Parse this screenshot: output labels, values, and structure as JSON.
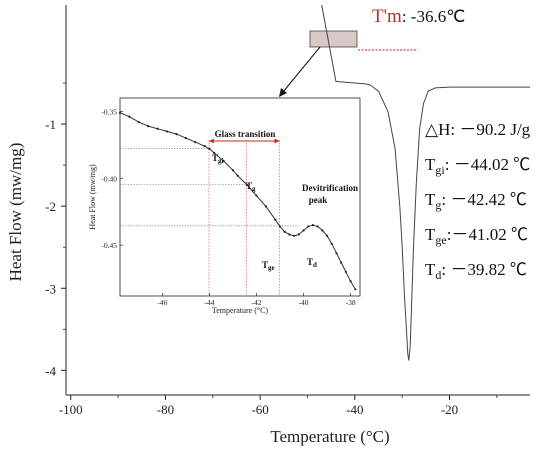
{
  "chart_data": [
    {
      "type": "line",
      "xlabel": "Temperature (°C)",
      "ylabel": "Heat Flow (mw/mg)",
      "xlim": [
        -101,
        -3
      ],
      "ylim": [
        -4.3,
        0.45
      ],
      "xticks": [
        -100,
        -80,
        -60,
        -40,
        -20
      ],
      "xtick_labels": [
        "-100",
        "-80",
        "-60",
        "-40",
        "-20"
      ],
      "yticks": [
        -1,
        -2,
        -3,
        -4
      ],
      "ytick_labels": [
        "-1",
        "-2",
        "-3",
        "-4"
      ],
      "grid": false,
      "series": [
        {
          "color": "#444444",
          "x": [
            -47,
            -44,
            -42,
            -40,
            -38,
            -37,
            -36.6,
            -35,
            -33,
            -31.5,
            -30.5,
            -30,
            -29.5,
            -29,
            -28.8,
            -28.6,
            -28.3,
            -28,
            -27.6,
            -27,
            -26.3,
            -25.5,
            -24.5,
            -23,
            -20,
            -10,
            -3
          ],
          "y": [
            0.45,
            -0.48,
            -0.49,
            -0.5,
            -0.51,
            -0.52,
            -0.53,
            -0.6,
            -0.85,
            -1.3,
            -2.0,
            -2.5,
            -3.1,
            -3.6,
            -3.8,
            -3.88,
            -3.7,
            -3.2,
            -2.5,
            -1.7,
            -1.05,
            -0.75,
            -0.6,
            -0.56,
            -0.55,
            -0.55,
            -0.55
          ]
        }
      ],
      "annotations": {
        "onset_label": "T'm",
        "onset_value": ": -36.6℃",
        "enthalpy": "△H: －90.2  J/g",
        "tgi": "T",
        "tgi_sub": "gi",
        "tgi_value": ": －44.02 ℃",
        "tg": "T",
        "tg_sub": "g",
        "tg_value": ":  －42.42 ℃",
        "tge": "T",
        "tge_sub": "ge",
        "tge_value": ":－41.02 ℃",
        "td": "T",
        "td_sub": "d",
        "td_value": ": －39.82 ℃"
      },
      "colors": {
        "onset_label": "#b03030",
        "tangent": "#e04040",
        "zoom_box": "#d8c8c8"
      }
    },
    {
      "type": "line",
      "xlabel": "Temperature (°C)",
      "ylabel": "Heat Flow (mw/mg)",
      "xlim": [
        -47.8,
        -37.6
      ],
      "ylim": [
        -0.488,
        -0.34
      ],
      "xticks": [
        -46,
        -44,
        -42,
        -40,
        -38
      ],
      "xtick_labels": [
        "-46",
        "-44",
        "-42",
        "-40",
        "-38"
      ],
      "yticks": [
        -0.35,
        -0.4,
        -0.45
      ],
      "ytick_labels": [
        "-0.35",
        "-0.40",
        "-0.45"
      ],
      "grid": false,
      "series": [
        {
          "color": "#333333",
          "x": [
            -47.8,
            -47.4,
            -47.0,
            -46.6,
            -46.2,
            -45.8,
            -45.4,
            -45.0,
            -44.6,
            -44.2,
            -44.0,
            -43.8,
            -43.4,
            -43.0,
            -42.8,
            -42.4,
            -42.0,
            -41.6,
            -41.2,
            -41.0,
            -40.8,
            -40.6,
            -40.4,
            -40.2,
            -40.0,
            -39.8,
            -39.6,
            -39.4,
            -39.2,
            -39.0,
            -38.8,
            -38.6,
            -38.4,
            -38.2,
            -38.0,
            -37.8
          ],
          "y": [
            -0.351,
            -0.354,
            -0.358,
            -0.361,
            -0.363,
            -0.365,
            -0.367,
            -0.37,
            -0.373,
            -0.376,
            -0.378,
            -0.381,
            -0.387,
            -0.394,
            -0.398,
            -0.405,
            -0.413,
            -0.421,
            -0.431,
            -0.436,
            -0.44,
            -0.442,
            -0.443,
            -0.442,
            -0.439,
            -0.436,
            -0.435,
            -0.436,
            -0.439,
            -0.443,
            -0.449,
            -0.456,
            -0.463,
            -0.47,
            -0.477,
            -0.483
          ]
        }
      ],
      "annotations": {
        "glass_transition": "Glass transition",
        "tgi": "T",
        "tgi_sub": "gi",
        "tg": "T",
        "tg_sub": "g",
        "tge": "T",
        "tge_sub": "ge",
        "td": "T",
        "td_sub": "d",
        "devit_line1": "Devitrification",
        "devit_line2": "peak"
      },
      "markers": {
        "tgi": -44.02,
        "tg": -42.42,
        "tge": -41.02
      },
      "colors": {
        "guide": "#e06060",
        "label_red": "#cc2222",
        "arrow": "#cc2222"
      }
    }
  ]
}
